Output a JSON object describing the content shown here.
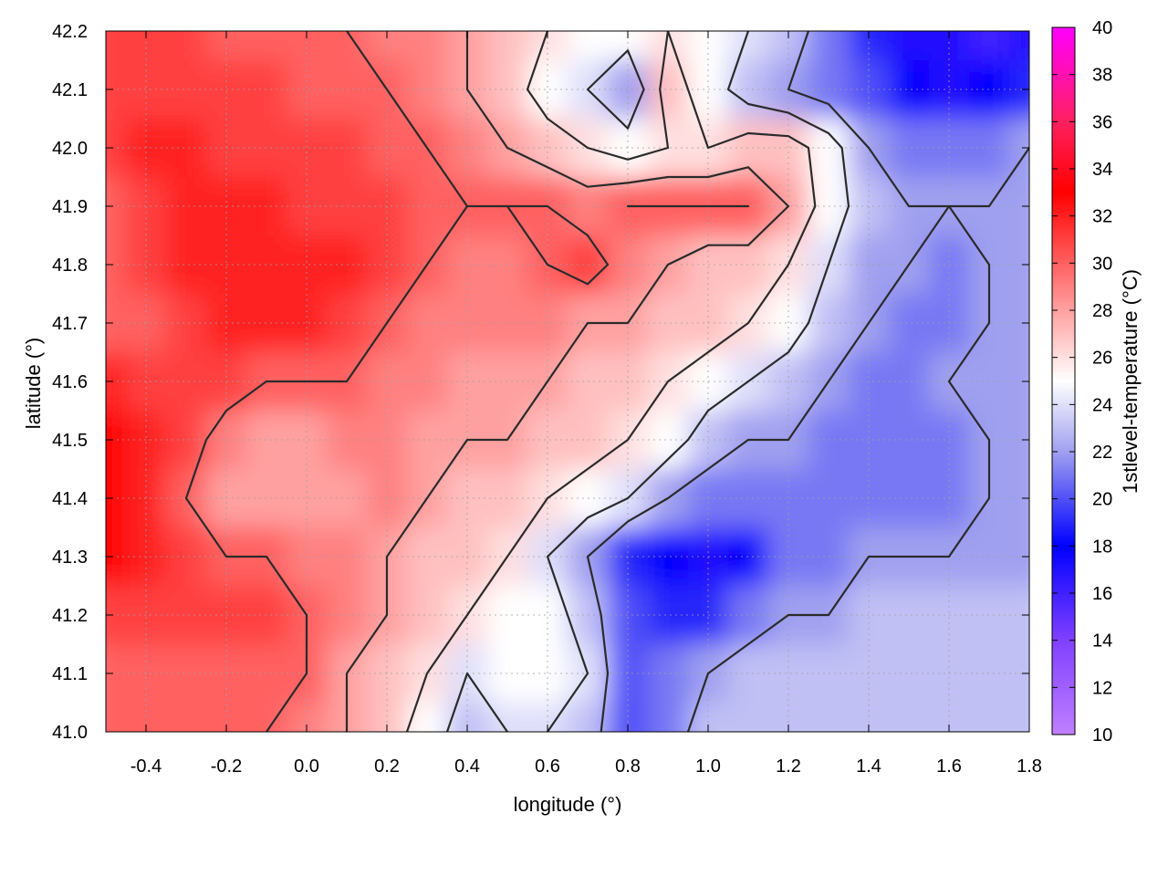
{
  "chart_data": {
    "type": "heatmap",
    "title": "",
    "xlabel": "longitude (°)",
    "ylabel": "latitude (°)",
    "colorbar_label": "1stlevel-temperature (°C)",
    "xlim": [
      -0.5,
      1.8
    ],
    "ylim": [
      41.0,
      42.2
    ],
    "clim": [
      10,
      40
    ],
    "grid": true,
    "x_ticks": [
      -0.4,
      -0.2,
      0.0,
      0.2,
      0.4,
      0.6,
      0.8,
      1.0,
      1.2,
      1.4,
      1.6,
      1.8
    ],
    "x_tick_labels": [
      "-0.4",
      "-0.2",
      "0.0",
      "0.2",
      "0.4",
      "0.6",
      "0.8",
      "1.0",
      "1.2",
      "1.4",
      "1.6",
      "1.8"
    ],
    "y_ticks": [
      41.0,
      41.1,
      41.2,
      41.3,
      41.4,
      41.5,
      41.6,
      41.7,
      41.8,
      41.9,
      42.0,
      42.1,
      42.2
    ],
    "y_tick_labels": [
      "41.0",
      "41.1",
      "41.2",
      "41.3",
      "41.4",
      "41.5",
      "41.6",
      "41.7",
      "41.8",
      "41.9",
      "42.0",
      "42.1",
      "42.2"
    ],
    "colorbar_ticks": [
      10,
      12,
      14,
      16,
      18,
      20,
      22,
      24,
      26,
      28,
      30,
      32,
      34,
      36,
      38,
      40
    ],
    "colorbar_tick_labels": [
      "10",
      "12",
      "14",
      "16",
      "18",
      "20",
      "22",
      "24",
      "26",
      "28",
      "30",
      "32",
      "34",
      "36",
      "38",
      "40"
    ],
    "colormap": [
      {
        "value": 10,
        "color": "#c080ff"
      },
      {
        "value": 14,
        "color": "#8040ff"
      },
      {
        "value": 18,
        "color": "#0000ff"
      },
      {
        "value": 22,
        "color": "#a0a0f0"
      },
      {
        "value": 25,
        "color": "#ffffff"
      },
      {
        "value": 28,
        "color": "#ffa0a0"
      },
      {
        "value": 33,
        "color": "#ff0000"
      },
      {
        "value": 36,
        "color": "#ff2060"
      },
      {
        "value": 40,
        "color": "#ff00ff"
      }
    ],
    "grid_step": 0.1,
    "temperature_grid": {
      "lon": [
        -0.5,
        -0.4,
        -0.3,
        -0.2,
        -0.1,
        0.0,
        0.1,
        0.2,
        0.3,
        0.4,
        0.5,
        0.6,
        0.7,
        0.8,
        0.9,
        1.0,
        1.1,
        1.2,
        1.3,
        1.4,
        1.5,
        1.6,
        1.7,
        1.8
      ],
      "lat": [
        42.2,
        42.1,
        42.0,
        41.9,
        41.8,
        41.7,
        41.6,
        41.5,
        41.4,
        41.3,
        41.2,
        41.1,
        41.0
      ],
      "values": [
        [
          31,
          31,
          31,
          30,
          30,
          30,
          30,
          29,
          29,
          28,
          27,
          26,
          25,
          25,
          26,
          25,
          24,
          23,
          21,
          19,
          17,
          17,
          16,
          17
        ],
        [
          31,
          31,
          31,
          31,
          31,
          30,
          30,
          30,
          29,
          28,
          27,
          25,
          24,
          22,
          27,
          25,
          23,
          22,
          21,
          20,
          18,
          17,
          18,
          19
        ],
        [
          31,
          32,
          32,
          31,
          31,
          31,
          31,
          30,
          30,
          29,
          28,
          27,
          26,
          25,
          26,
          26,
          27,
          27,
          25,
          22,
          21,
          21,
          21,
          22
        ],
        [
          30,
          31,
          32,
          32,
          32,
          31,
          31,
          31,
          30,
          30,
          30,
          30,
          29,
          30,
          30,
          30,
          30,
          28,
          25,
          23,
          22,
          22,
          22,
          22
        ],
        [
          30,
          31,
          32,
          32,
          32,
          32,
          32,
          31,
          30,
          29,
          29,
          30,
          31,
          29,
          28,
          27,
          27,
          26,
          24,
          22,
          22,
          21,
          22,
          22
        ],
        [
          30,
          30,
          31,
          32,
          32,
          32,
          31,
          30,
          29,
          29,
          29,
          29,
          28,
          28,
          27,
          27,
          26,
          25,
          23,
          22,
          21,
          21,
          22,
          22
        ],
        [
          32,
          31,
          31,
          31,
          30,
          30,
          30,
          29,
          29,
          28,
          28,
          28,
          27,
          27,
          26,
          25,
          24,
          23,
          22,
          21,
          21,
          22,
          22,
          22
        ],
        [
          33,
          32,
          31,
          29,
          28,
          28,
          29,
          29,
          28,
          28,
          28,
          27,
          27,
          26,
          25,
          23,
          22,
          22,
          21,
          21,
          21,
          21,
          22,
          22
        ],
        [
          33,
          32,
          30,
          28,
          28,
          28,
          28,
          29,
          28,
          27,
          27,
          26,
          25,
          24,
          22,
          21,
          21,
          21,
          21,
          21,
          21,
          21,
          22,
          22
        ],
        [
          33,
          32,
          31,
          30,
          30,
          29,
          29,
          28,
          27,
          27,
          26,
          24,
          22,
          19,
          18,
          17,
          18,
          21,
          21,
          22,
          22,
          22,
          22,
          22
        ],
        [
          31,
          31,
          31,
          31,
          31,
          30,
          29,
          28,
          27,
          26,
          25,
          25,
          23,
          20,
          19,
          19,
          21,
          22,
          22,
          23,
          23,
          23,
          23,
          23
        ],
        [
          30,
          30,
          30,
          30,
          30,
          30,
          28,
          27,
          26,
          24,
          25,
          25,
          24,
          20,
          21,
          22,
          23,
          23,
          23,
          23,
          23,
          23,
          23,
          23
        ],
        [
          30,
          30,
          30,
          30,
          30,
          29,
          28,
          27,
          25,
          23,
          24,
          24,
          23,
          20,
          21,
          23,
          23,
          23,
          23,
          23,
          23,
          23,
          23,
          23
        ]
      ]
    },
    "contour_levels": [
      22,
      24,
      26,
      28,
      30
    ]
  }
}
